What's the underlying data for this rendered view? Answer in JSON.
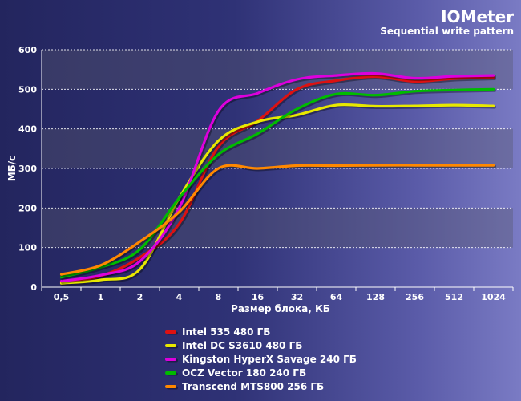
{
  "chart_data": {
    "type": "line",
    "title": "IOMeter",
    "subtitle": "Sequential write pattern",
    "xlabel": "Размер блока, КБ",
    "ylabel": "МБ/с",
    "categories": [
      "0,5",
      "1",
      "2",
      "4",
      "8",
      "16",
      "32",
      "64",
      "128",
      "256",
      "512",
      "1024"
    ],
    "ylim": [
      0,
      600
    ],
    "yticks": [
      0,
      100,
      200,
      300,
      400,
      500,
      600
    ],
    "grid": true,
    "legend_position": "bottom",
    "series": [
      {
        "name": "Intel 535 480 ГБ",
        "color": "#dd1111",
        "values": [
          12,
          28,
          75,
          160,
          355,
          420,
          500,
          522,
          532,
          520,
          527,
          530
        ]
      },
      {
        "name": "Intel DC S3610 480 ГБ",
        "color": "#e8e800",
        "values": [
          10,
          18,
          45,
          225,
          370,
          418,
          435,
          460,
          457,
          458,
          460,
          458
        ]
      },
      {
        "name": "Kingston HyperX Savage 240 ГБ",
        "color": "#dd00dd",
        "values": [
          15,
          30,
          65,
          200,
          445,
          490,
          525,
          535,
          540,
          528,
          533,
          535
        ]
      },
      {
        "name": "OCZ Vector 180 240 ГБ",
        "color": "#00bb00",
        "values": [
          25,
          50,
          95,
          225,
          335,
          388,
          450,
          488,
          485,
          495,
          498,
          500
        ]
      },
      {
        "name": "Transcend MTS800 256 ГБ",
        "color": "#ff8800",
        "values": [
          32,
          55,
          115,
          190,
          300,
          300,
          307,
          307,
          308,
          308,
          308,
          308
        ]
      }
    ]
  }
}
